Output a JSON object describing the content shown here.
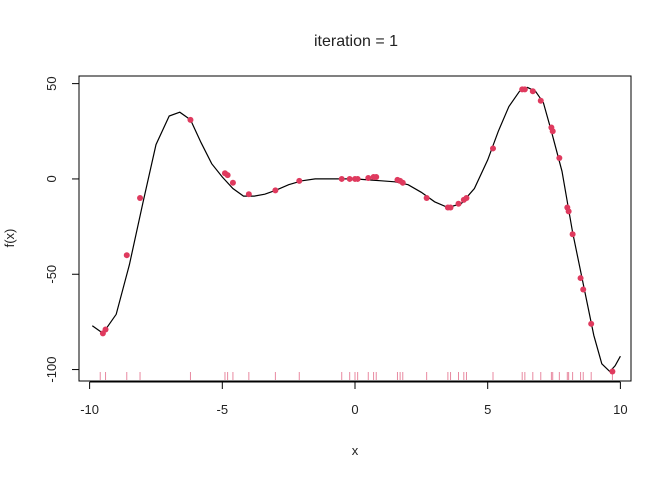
{
  "chart_data": {
    "type": "scatter",
    "title": "iteration = 1",
    "xlabel": "x",
    "ylabel": "f(x)",
    "xlim": [
      -10.4,
      10.4
    ],
    "ylim": [
      -106,
      54
    ],
    "x_ticks": [
      -10,
      -5,
      0,
      5,
      10
    ],
    "x_tick_labels": [
      "-10",
      "-5",
      "0",
      "5",
      "10"
    ],
    "y_ticks": [
      50,
      0,
      -50,
      -100
    ],
    "y_tick_labels": [
      "50",
      "0",
      "-50",
      "-100"
    ],
    "grid": false,
    "colors": {
      "curve": "#000000",
      "points": "#df3a5e",
      "rug": "#e889a0",
      "box": "#000000"
    },
    "curve": {
      "x": [
        -9.9,
        -9.5,
        -9.0,
        -8.5,
        -8.0,
        -7.5,
        -7.0,
        -6.6,
        -6.2,
        -5.8,
        -5.4,
        -5.0,
        -4.6,
        -4.2,
        -3.8,
        -3.4,
        -3.0,
        -2.5,
        -2.0,
        -1.5,
        -1.0,
        -0.5,
        0.0,
        0.5,
        1.0,
        1.5,
        2.0,
        2.5,
        3.0,
        3.5,
        4.0,
        4.5,
        5.0,
        5.4,
        5.8,
        6.2,
        6.5,
        6.8,
        7.1,
        7.4,
        7.8,
        8.2,
        8.6,
        9.0,
        9.3,
        9.6,
        9.8,
        10.0
      ],
      "y": [
        -77,
        -81,
        -71,
        -45,
        -13,
        18,
        33,
        35,
        31,
        19,
        8,
        1,
        -5,
        -9,
        -9,
        -8,
        -6,
        -3,
        -1,
        0,
        0,
        0,
        0,
        -0.5,
        -1,
        -1.5,
        -3,
        -7,
        -12,
        -15,
        -13,
        -5,
        10,
        25,
        38,
        46,
        48,
        46,
        40,
        25,
        4,
        -28,
        -55,
        -82,
        -97,
        -101,
        -98,
        -93
      ]
    },
    "points": {
      "x": [
        -9.5,
        -9.4,
        -8.6,
        -8.1,
        -6.2,
        -4.9,
        -4.8,
        -4.6,
        -4.0,
        -3.0,
        -2.1,
        -0.5,
        -0.2,
        0.0,
        0.1,
        0.5,
        0.7,
        0.8,
        1.6,
        1.7,
        1.8,
        2.7,
        3.5,
        3.6,
        3.9,
        4.1,
        4.2,
        5.2,
        6.3,
        6.4,
        6.7,
        7.0,
        7.4,
        7.45,
        7.7,
        8.0,
        8.05,
        8.2,
        8.5,
        8.6,
        8.9,
        9.7
      ],
      "y": [
        -81,
        -79,
        -40,
        -10,
        31,
        3,
        2,
        -2,
        -8,
        -6,
        -1,
        0,
        0,
        0,
        0,
        0.5,
        1,
        1,
        -0.5,
        -1,
        -2,
        -10,
        -15,
        -15,
        -13,
        -11,
        -10,
        16,
        47,
        47,
        46,
        41,
        27,
        25,
        11,
        -15,
        -17,
        -29,
        -52,
        -58,
        -76,
        -101
      ]
    },
    "rug_x": [
      -9.6,
      -9.4,
      -8.6,
      -8.1,
      -6.2,
      -4.9,
      -4.8,
      -4.6,
      -4.0,
      -3.0,
      -2.1,
      -0.5,
      -0.2,
      0.0,
      0.1,
      0.5,
      0.7,
      0.8,
      1.6,
      1.7,
      1.8,
      2.7,
      3.5,
      3.6,
      3.9,
      4.1,
      4.2,
      5.2,
      6.3,
      6.4,
      6.7,
      7.0,
      7.4,
      7.45,
      7.7,
      8.0,
      8.05,
      8.2,
      8.5,
      8.6,
      8.9,
      9.7
    ]
  }
}
